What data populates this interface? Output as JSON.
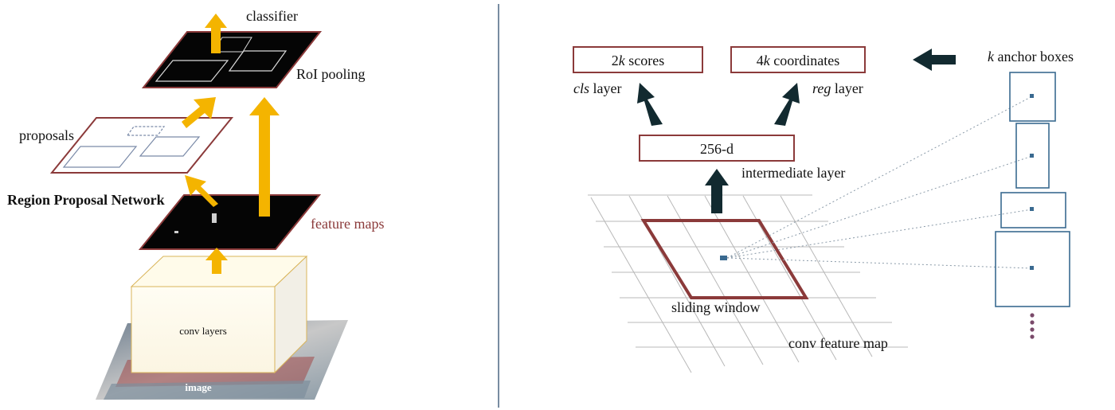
{
  "colors": {
    "arrow_yellow": "#f4b400",
    "arrow_dark": "#122a30",
    "frame_red": "#8b3a3a",
    "anchor_blue": "#3a6a90",
    "grid_gray": "#b8b8b8",
    "divider": "#2f4f6f",
    "dot_purple": "#7a4a6a",
    "feature_label": "#8b3a3a"
  },
  "left": {
    "classifier": "classifier",
    "roi_pooling": "RoI pooling",
    "proposals": "proposals",
    "rpn": "Region Proposal Network",
    "feature_maps": "feature maps",
    "conv_layers": "conv layers",
    "image": "image"
  },
  "right": {
    "scores": {
      "num": "2",
      "var": "k",
      "rest": " scores"
    },
    "coords": {
      "num": "4",
      "var": "k",
      "rest": " coordinates"
    },
    "cls_layer": {
      "var": "cls",
      "rest": " layer"
    },
    "reg_layer": {
      "var": "reg",
      "rest": " layer"
    },
    "anchor_boxes": {
      "var": "k",
      "rest": " anchor boxes"
    },
    "hidden": "256-d",
    "intermediate": "intermediate layer",
    "sliding_window": "sliding window",
    "conv_feature_map": "conv feature map"
  }
}
